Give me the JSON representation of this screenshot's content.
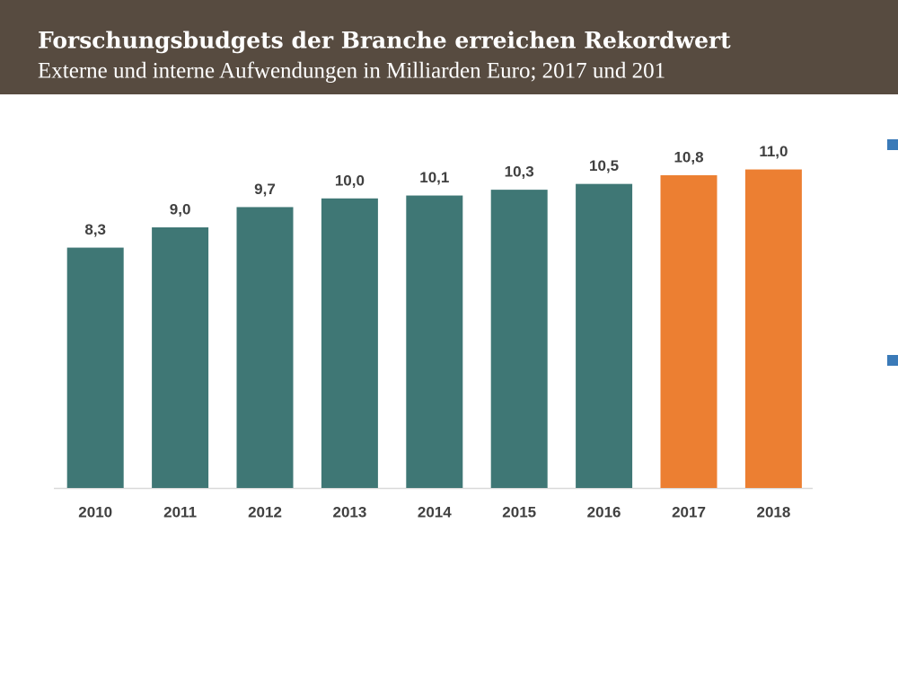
{
  "chart_data": {
    "type": "bar",
    "title": "Forschungsbudgets der Branche erreichen Rekordwert",
    "subtitle": "Externe und interne Aufwendungen in Milliarden Euro; 2017 und 201",
    "categories": [
      "2010",
      "2011",
      "2012",
      "2013",
      "2014",
      "2015",
      "2016",
      "2017",
      "2018"
    ],
    "values": [
      8.3,
      9.0,
      9.7,
      10.0,
      10.1,
      10.3,
      10.5,
      10.8,
      11.0
    ],
    "value_labels": [
      "8,3",
      "9,0",
      "9,7",
      "10,0",
      "10,1",
      "10,3",
      "10,5",
      "10,8",
      "11,0"
    ],
    "colors": [
      "#3f7775",
      "#3f7775",
      "#3f7775",
      "#3f7775",
      "#3f7775",
      "#3f7775",
      "#3f7775",
      "#ec7f32",
      "#ec7f32"
    ],
    "ylim": [
      0,
      13.5
    ]
  }
}
